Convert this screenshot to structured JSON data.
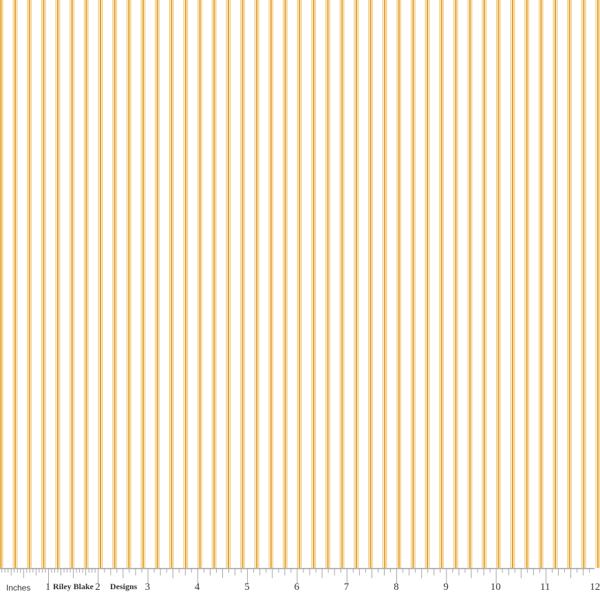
{
  "fabric": {
    "stripe_dark_color": "#e09b1c",
    "stripe_light_color": "#f2c468",
    "background_color": "#ffffff",
    "stripes_per_inch": 3.5
  },
  "ruler": {
    "unit_label": "Inches",
    "brand_left": "Riley Blake",
    "brand_right": "Designs",
    "numbers": [
      "1",
      "2",
      "3",
      "4",
      "5",
      "6",
      "7",
      "8",
      "9",
      "10",
      "11",
      "12"
    ]
  }
}
